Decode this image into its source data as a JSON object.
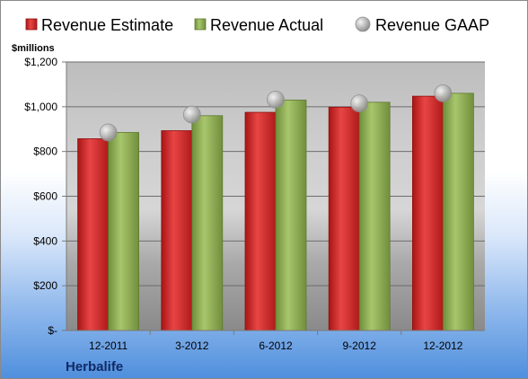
{
  "chart_data": {
    "type": "bar",
    "unit_label": "$millions",
    "categories": [
      "12-2011",
      "3-2012",
      "6-2012",
      "9-2012",
      "12-2012"
    ],
    "series": [
      {
        "name": "Revenue Estimate",
        "kind": "bar",
        "color": "#d42a2a",
        "values": [
          857,
          893,
          975,
          998,
          1047
        ]
      },
      {
        "name": "Revenue Actual",
        "kind": "bar",
        "color": "#8cac52",
        "values": [
          885,
          960,
          1030,
          1020,
          1060
        ]
      },
      {
        "name": "Revenue GAAP",
        "kind": "marker",
        "color": "#b8b8b8",
        "values": [
          885,
          965,
          1032,
          1015,
          1060
        ]
      }
    ],
    "ylim": [
      0,
      1200
    ],
    "yticks": [
      0,
      200,
      400,
      600,
      800,
      1000,
      1200
    ],
    "ytick_labels": [
      "$-",
      "$200",
      "$400",
      "$600",
      "$800",
      "$1,000",
      "$1,200"
    ],
    "grid": true,
    "legend_position": "top"
  },
  "footer": {
    "company": "Herbalife"
  }
}
